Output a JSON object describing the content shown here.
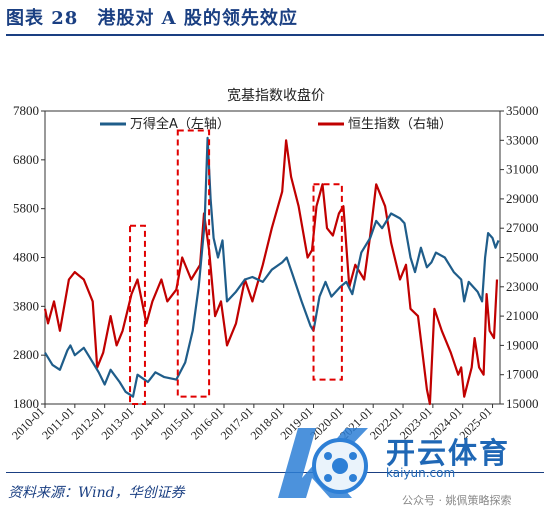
{
  "figure": {
    "title": "图表 28　港股对 A 股的领先效应",
    "source": "资料来源：Wind，华创证券"
  },
  "watermark": {
    "brand": "开云体育",
    "site": "kaiyun.com",
    "wechat": "公众号 · 姚佩策略探索"
  },
  "chart_data": {
    "type": "line",
    "title": "宽基指数收盘价",
    "x": [
      "2010-01",
      "2011-01",
      "2012-01",
      "2013-01",
      "2014-01",
      "2015-01",
      "2016-01",
      "2017-01",
      "2018-01",
      "2019-01",
      "2020-01",
      "2021-01",
      "2022-01",
      "2023-01",
      "2024-01",
      "2025-01"
    ],
    "x_tick_labels": [
      "2010-01",
      "2011-01",
      "2012-01",
      "2013-01",
      "2014-01",
      "2015-01",
      "2016-01",
      "2017-01",
      "2018-01",
      "2019-01",
      "2020-01",
      "2021-01",
      "2022-01",
      "2023-01",
      "2024-01",
      "2025-01"
    ],
    "left_axis": {
      "ylim": [
        1800,
        7800
      ],
      "ticks": [
        "1800",
        "2800",
        "3800",
        "4800",
        "5800",
        "6800",
        "7800"
      ]
    },
    "right_axis": {
      "ylim": [
        15000,
        35000
      ],
      "ticks": [
        "15000",
        "17000",
        "19000",
        "21000",
        "23000",
        "25000",
        "27000",
        "29000",
        "31000",
        "33000",
        "35000"
      ]
    },
    "legend": {
      "placement": "top"
    },
    "series": [
      {
        "name": "万得全A（左轴）",
        "axis": "left",
        "color": "#1f5d8a",
        "points": [
          [
            2010.0,
            2850
          ],
          [
            2010.25,
            2600
          ],
          [
            2010.5,
            2500
          ],
          [
            2010.75,
            2900
          ],
          [
            2010.85,
            3000
          ],
          [
            2011.0,
            2800
          ],
          [
            2011.3,
            2950
          ],
          [
            2011.5,
            2750
          ],
          [
            2011.8,
            2450
          ],
          [
            2012.0,
            2200
          ],
          [
            2012.2,
            2500
          ],
          [
            2012.5,
            2250
          ],
          [
            2012.7,
            2050
          ],
          [
            2012.95,
            1950
          ],
          [
            2013.1,
            2400
          ],
          [
            2013.45,
            2250
          ],
          [
            2013.7,
            2450
          ],
          [
            2014.0,
            2350
          ],
          [
            2014.4,
            2300
          ],
          [
            2014.7,
            2650
          ],
          [
            2014.95,
            3300
          ],
          [
            2015.15,
            4200
          ],
          [
            2015.35,
            5500
          ],
          [
            2015.45,
            7250
          ],
          [
            2015.55,
            6000
          ],
          [
            2015.65,
            5200
          ],
          [
            2015.8,
            4800
          ],
          [
            2015.95,
            5150
          ],
          [
            2016.1,
            3900
          ],
          [
            2016.4,
            4100
          ],
          [
            2016.7,
            4350
          ],
          [
            2016.95,
            4400
          ],
          [
            2017.3,
            4300
          ],
          [
            2017.6,
            4550
          ],
          [
            2017.95,
            4700
          ],
          [
            2018.1,
            4800
          ],
          [
            2018.3,
            4450
          ],
          [
            2018.6,
            3900
          ],
          [
            2018.9,
            3400
          ],
          [
            2019.0,
            3300
          ],
          [
            2019.2,
            4000
          ],
          [
            2019.4,
            4300
          ],
          [
            2019.6,
            4000
          ],
          [
            2019.9,
            4200
          ],
          [
            2020.1,
            4300
          ],
          [
            2020.3,
            4050
          ],
          [
            2020.6,
            4900
          ],
          [
            2020.9,
            5200
          ],
          [
            2021.1,
            5550
          ],
          [
            2021.3,
            5400
          ],
          [
            2021.6,
            5700
          ],
          [
            2021.9,
            5600
          ],
          [
            2022.05,
            5500
          ],
          [
            2022.25,
            4800
          ],
          [
            2022.4,
            4500
          ],
          [
            2022.6,
            5000
          ],
          [
            2022.8,
            4600
          ],
          [
            2022.95,
            4700
          ],
          [
            2023.1,
            4900
          ],
          [
            2023.4,
            4800
          ],
          [
            2023.7,
            4500
          ],
          [
            2023.95,
            4350
          ],
          [
            2024.05,
            3900
          ],
          [
            2024.2,
            4300
          ],
          [
            2024.5,
            4100
          ],
          [
            2024.65,
            3900
          ],
          [
            2024.75,
            4800
          ],
          [
            2024.85,
            5300
          ],
          [
            2025.0,
            5200
          ],
          [
            2025.1,
            5000
          ],
          [
            2025.2,
            5150
          ]
        ]
      },
      {
        "name": "恒生指数（右轴）",
        "axis": "right",
        "color": "#c00000",
        "points": [
          [
            2010.0,
            21500
          ],
          [
            2010.1,
            20500
          ],
          [
            2010.3,
            22000
          ],
          [
            2010.5,
            20000
          ],
          [
            2010.8,
            23500
          ],
          [
            2011.0,
            24000
          ],
          [
            2011.3,
            23500
          ],
          [
            2011.6,
            22000
          ],
          [
            2011.75,
            17500
          ],
          [
            2011.95,
            18500
          ],
          [
            2012.2,
            21000
          ],
          [
            2012.4,
            19000
          ],
          [
            2012.6,
            20000
          ],
          [
            2012.9,
            22500
          ],
          [
            2013.1,
            23500
          ],
          [
            2013.4,
            20500
          ],
          [
            2013.6,
            22000
          ],
          [
            2013.9,
            23500
          ],
          [
            2014.1,
            22000
          ],
          [
            2014.4,
            22800
          ],
          [
            2014.6,
            25000
          ],
          [
            2014.9,
            23500
          ],
          [
            2015.2,
            24500
          ],
          [
            2015.33,
            28000
          ],
          [
            2015.5,
            25500
          ],
          [
            2015.7,
            21000
          ],
          [
            2015.9,
            22000
          ],
          [
            2016.1,
            19000
          ],
          [
            2016.4,
            20500
          ],
          [
            2016.7,
            23500
          ],
          [
            2016.95,
            22000
          ],
          [
            2017.3,
            24500
          ],
          [
            2017.6,
            27000
          ],
          [
            2017.95,
            29500
          ],
          [
            2018.08,
            33000
          ],
          [
            2018.25,
            30500
          ],
          [
            2018.5,
            28500
          ],
          [
            2018.8,
            25000
          ],
          [
            2018.95,
            25500
          ],
          [
            2019.1,
            28500
          ],
          [
            2019.3,
            30000
          ],
          [
            2019.45,
            27000
          ],
          [
            2019.65,
            26500
          ],
          [
            2019.85,
            28000
          ],
          [
            2020.0,
            28500
          ],
          [
            2020.2,
            23000
          ],
          [
            2020.4,
            24500
          ],
          [
            2020.7,
            23500
          ],
          [
            2020.9,
            26500
          ],
          [
            2021.1,
            30000
          ],
          [
            2021.4,
            28500
          ],
          [
            2021.6,
            26000
          ],
          [
            2021.9,
            23500
          ],
          [
            2022.1,
            24500
          ],
          [
            2022.25,
            21500
          ],
          [
            2022.5,
            21000
          ],
          [
            2022.8,
            16000
          ],
          [
            2022.9,
            15000
          ],
          [
            2023.05,
            21500
          ],
          [
            2023.3,
            20000
          ],
          [
            2023.6,
            18500
          ],
          [
            2023.85,
            17000
          ],
          [
            2023.95,
            17500
          ],
          [
            2024.05,
            15500
          ],
          [
            2024.3,
            17500
          ],
          [
            2024.4,
            19500
          ],
          [
            2024.55,
            17500
          ],
          [
            2024.7,
            17000
          ],
          [
            2024.8,
            22500
          ],
          [
            2024.9,
            20000
          ],
          [
            2025.05,
            19500
          ],
          [
            2025.15,
            23500
          ]
        ]
      }
    ],
    "highlight_periods": [
      {
        "axis": "left",
        "x": [
          2012.85,
          2013.35
        ],
        "y": [
          1800,
          5450
        ]
      },
      {
        "axis": "left",
        "x": [
          2014.45,
          2015.5
        ],
        "y": [
          1950,
          7400
        ]
      },
      {
        "axis": "left",
        "x": [
          2019.0,
          2019.95
        ],
        "y": [
          2300,
          6300
        ]
      }
    ]
  }
}
